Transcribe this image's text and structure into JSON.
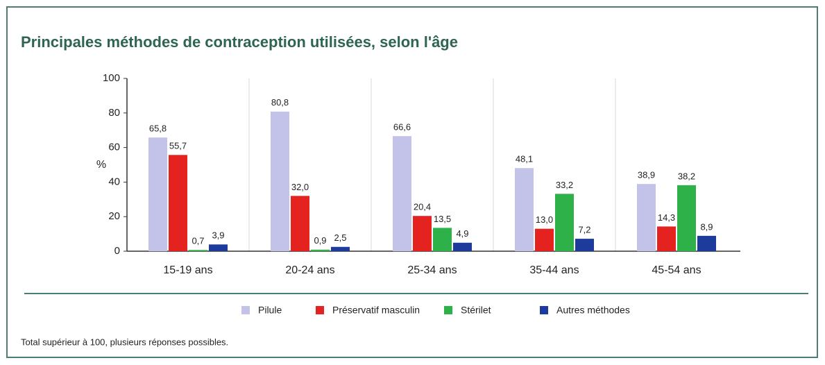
{
  "chart_data": {
    "type": "bar",
    "title": "Principales méthodes de contraception utilisées, selon l'âge",
    "y_label": "%",
    "note": "Total supérieur à 100, plusieurs réponses possibles.",
    "categories": [
      "15-19 ans",
      "20-24 ans",
      "25-34 ans",
      "35-44 ans",
      "45-54 ans"
    ],
    "series": [
      {
        "name": "Pilule",
        "color": "#c3c2e8",
        "values": [
          65.8,
          80.8,
          66.6,
          48.1,
          38.9
        ],
        "value_labels": [
          "65,8",
          "80,8",
          "66,6",
          "48,1",
          "38,9"
        ]
      },
      {
        "name": "Préservatif masculin",
        "color": "#e4221f",
        "values": [
          55.7,
          32.0,
          20.4,
          13.0,
          14.3
        ],
        "value_labels": [
          "55,7",
          "32,0",
          "20,4",
          "13,0",
          "14,3"
        ]
      },
      {
        "name": "Stérilet",
        "color": "#2fb14a",
        "values": [
          0.7,
          0.9,
          13.5,
          33.2,
          38.2
        ],
        "value_labels": [
          "0,7",
          "0,9",
          "13,5",
          "33,2",
          "38,2"
        ]
      },
      {
        "name": "Autres méthodes",
        "color": "#1d3b9b",
        "values": [
          3.9,
          2.5,
          4.9,
          7.2,
          8.9
        ],
        "value_labels": [
          "3,9",
          "2,5",
          "4,9",
          "7,2",
          "8,9"
        ]
      }
    ],
    "ylim": [
      0,
      100
    ],
    "yticks": [
      0,
      20,
      40,
      60,
      80,
      100
    ],
    "legend": "bottom"
  }
}
